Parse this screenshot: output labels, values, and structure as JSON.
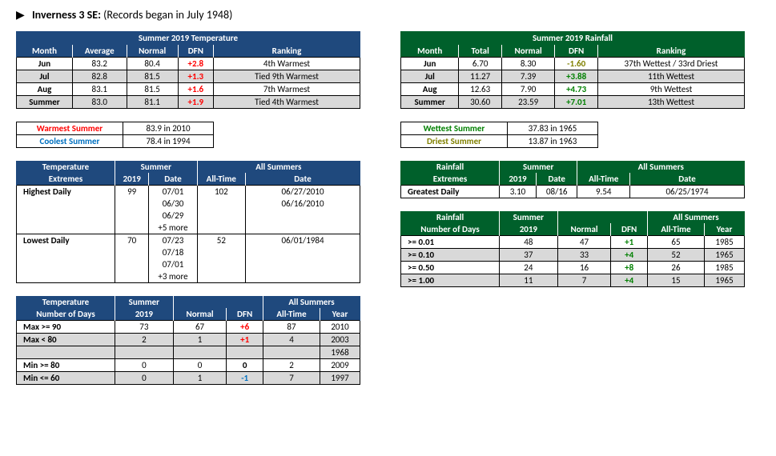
{
  "header": {
    "triangle": "▶",
    "location": "Inverness 3 SE:",
    "note": "(Records began in July 1948)"
  },
  "temp_summary": {
    "title": "Summer 2019 Temperature",
    "cols": [
      "Month",
      "Average",
      "Normal",
      "DFN",
      "Ranking"
    ],
    "rows": [
      {
        "m": "Jun",
        "avg": "83.2",
        "norm": "80.4",
        "dfn": "+2.8",
        "rank": "4th Warmest",
        "grey": false
      },
      {
        "m": "Jul",
        "avg": "82.8",
        "norm": "81.5",
        "dfn": "+1.3",
        "rank": "Tied 9th Warmest",
        "grey": true
      },
      {
        "m": "Aug",
        "avg": "83.1",
        "norm": "81.5",
        "dfn": "+1.6",
        "rank": "7th Warmest",
        "grey": false
      },
      {
        "m": "Summer",
        "avg": "83.0",
        "norm": "81.1",
        "dfn": "+1.9",
        "rank": "Tied 4th Warmest",
        "grey": true
      }
    ]
  },
  "temp_records": {
    "warm_lbl": "Warmest Summer",
    "warm_val": "83.9 in 2010",
    "cool_lbl": "Coolest Summer",
    "cool_val": "78.4 in 1994"
  },
  "rain_summary": {
    "title": "Summer 2019 Rainfall",
    "cols": [
      "Month",
      "Total",
      "Normal",
      "DFN",
      "Ranking"
    ],
    "rows": [
      {
        "m": "Jun",
        "tot": "6.70",
        "norm": "8.30",
        "dfn": "-1.60",
        "cls": "oli",
        "rank": "37th Wettest / 33rd Driest",
        "grey": false
      },
      {
        "m": "Jul",
        "tot": "11.27",
        "norm": "7.39",
        "dfn": "+3.88",
        "cls": "grn",
        "rank": "11th Wettest",
        "grey": true
      },
      {
        "m": "Aug",
        "tot": "12.63",
        "norm": "7.90",
        "dfn": "+4.73",
        "cls": "grn",
        "rank": "9th Wettest",
        "grey": false
      },
      {
        "m": "Summer",
        "tot": "30.60",
        "norm": "23.59",
        "dfn": "+7.01",
        "cls": "grn",
        "rank": "13th Wettest",
        "grey": true
      }
    ]
  },
  "rain_records": {
    "wet_lbl": "Wettest Summer",
    "wet_val": "37.83 in 1965",
    "dry_lbl": "Driest Summer",
    "dry_val": "13.87 in 1963"
  },
  "temp_ext": {
    "h1": "Temperature",
    "h2": "Extremes",
    "g1": "Summer",
    "g2": "All Summers",
    "cols": [
      "2019",
      "Date",
      "All-Time",
      "Date"
    ],
    "highest_lbl": "Highest Daily",
    "highest_2019": "99",
    "highest_all": "102",
    "highest_dates": [
      "07/01",
      "06/30",
      "06/29",
      "+5 more"
    ],
    "highest_all_dates": [
      "06/27/2010",
      "06/16/2010"
    ],
    "lowest_lbl": "Lowest Daily",
    "lowest_2019": "70",
    "lowest_all": "52",
    "lowest_dates": [
      "07/23",
      "07/18",
      "07/01",
      "+3 more"
    ],
    "lowest_all_dates": [
      "06/01/1984"
    ]
  },
  "rain_ext": {
    "h1": "Rainfall",
    "h2": "Extremes",
    "g1": "Summer",
    "g2": "All Summers",
    "cols": [
      "2019",
      "Date",
      "All-Time",
      "Date"
    ],
    "lbl": "Greatest Daily",
    "v2019": "3.10",
    "d2019": "08/16",
    "vall": "9.54",
    "dall": "06/25/1974"
  },
  "temp_days": {
    "h1": "Temperature",
    "h2": "Number of Days",
    "g1": "Summer",
    "g2": "All Summers",
    "cols": [
      "2019",
      "Normal",
      "DFN",
      "All-Time",
      "Year"
    ],
    "rows": [
      {
        "lbl": "Max >= 90",
        "v": "73",
        "n": "67",
        "d": "+6",
        "cls": "red",
        "a": "87",
        "y": "2010",
        "grey": false
      },
      {
        "lbl": "Max < 80",
        "v": "2",
        "n": "1",
        "d": "+1",
        "cls": "red",
        "a": "4",
        "y": "2003",
        "grey": true
      },
      {
        "lbl": "",
        "v": "",
        "n": "",
        "d": "",
        "cls": "",
        "a": "",
        "y": "1968",
        "grey": true
      },
      {
        "lbl": "Min >= 80",
        "v": "0",
        "n": "0",
        "d": "0",
        "cls": "bold",
        "a": "2",
        "y": "2009",
        "grey": false
      },
      {
        "lbl": "Min <= 60",
        "v": "0",
        "n": "1",
        "d": "-1",
        "cls": "blu",
        "a": "7",
        "y": "1997",
        "grey": true
      }
    ]
  },
  "rain_days": {
    "h1": "Rainfall",
    "h2": "Number of Days",
    "g1": "Summer",
    "g2": "All Summers",
    "cols": [
      "2019",
      "Normal",
      "DFN",
      "All-Time",
      "Year"
    ],
    "rows": [
      {
        "lbl": ">= 0.01",
        "v": "48",
        "n": "47",
        "d": "+1",
        "a": "65",
        "y": "1985",
        "grey": false
      },
      {
        "lbl": ">= 0.10",
        "v": "37",
        "n": "33",
        "d": "+4",
        "a": "52",
        "y": "1965",
        "grey": true
      },
      {
        "lbl": ">= 0.50",
        "v": "24",
        "n": "16",
        "d": "+8",
        "a": "26",
        "y": "1985",
        "grey": false
      },
      {
        "lbl": ">= 1.00",
        "v": "11",
        "n": "7",
        "d": "+4",
        "a": "15",
        "y": "1965",
        "grey": true
      }
    ]
  }
}
